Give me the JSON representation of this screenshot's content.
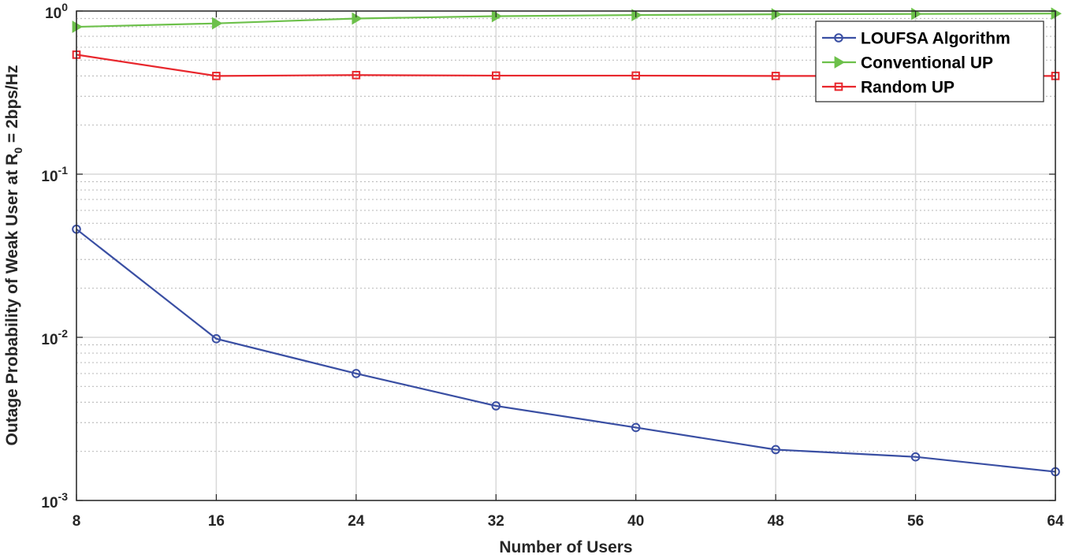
{
  "chart_data": {
    "type": "line",
    "title": "",
    "xlabel": "Number of Users",
    "ylabel": {
      "prefix": "Outage Probability of Weak User at R",
      "subscript": "0",
      "suffix": " = 2bps/Hz"
    },
    "x": [
      8,
      16,
      24,
      32,
      40,
      48,
      56,
      64
    ],
    "xticks": [
      "8",
      "16",
      "24",
      "32",
      "40",
      "48",
      "56",
      "64"
    ],
    "xlim": [
      8,
      64
    ],
    "yscale": "log",
    "ylim": [
      0.001,
      1
    ],
    "yticks": [
      {
        "base": "10",
        "exp": "-3",
        "value": 0.001
      },
      {
        "base": "10",
        "exp": "-2",
        "value": 0.01
      },
      {
        "base": "10",
        "exp": "-1",
        "value": 0.1
      },
      {
        "base": "10",
        "exp": "0",
        "value": 1
      }
    ],
    "grid": true,
    "minor_grid": true,
    "legend_position": "top-right",
    "series": [
      {
        "name": "LOUFSA Algorithm",
        "color": "#3a4fa3",
        "marker": "circle",
        "values": [
          0.046,
          0.0098,
          0.006,
          0.0038,
          0.0028,
          0.00205,
          0.00185,
          0.0015
        ]
      },
      {
        "name": "Conventional UP",
        "color": "#6cc04a",
        "marker": "triangle-right",
        "values": [
          0.8,
          0.84,
          0.9,
          0.93,
          0.945,
          0.955,
          0.96,
          0.965
        ]
      },
      {
        "name": "Random UP",
        "color": "#e8272d",
        "marker": "square",
        "values": [
          0.54,
          0.4,
          0.405,
          0.402,
          0.402,
          0.4,
          0.4,
          0.4
        ]
      }
    ]
  }
}
